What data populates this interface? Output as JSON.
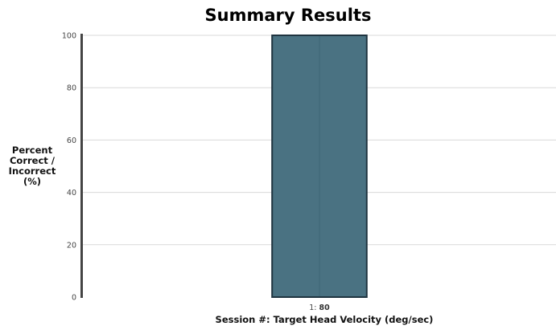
{
  "chart_data": {
    "type": "bar",
    "title": "Summary Results",
    "ylabel_lines": [
      "Percent",
      "Correct /",
      "Incorrect",
      "(%)"
    ],
    "xlabel": "Session #: Target Head Velocity (deg/sec)",
    "categories": [
      {
        "session": "1:",
        "velocity": "80"
      }
    ],
    "values": [
      100
    ],
    "ylim": [
      0,
      100
    ],
    "yticks": [
      0,
      20,
      40,
      60,
      80,
      100
    ],
    "grid": true,
    "legend": "none",
    "colors": {
      "bar_fill": "#4a7282",
      "bar_stroke": "#1f3440",
      "bar_midline": "#3f6676",
      "axis": "#444444",
      "grid": "#d9d9d9"
    }
  }
}
